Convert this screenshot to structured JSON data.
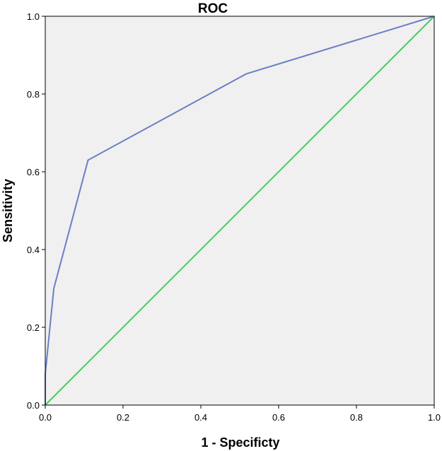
{
  "chart_data": {
    "type": "line",
    "title": "ROC",
    "xlabel": "1 - Specificty",
    "ylabel": "Sensitivity",
    "xlim": [
      0,
      1
    ],
    "ylim": [
      0,
      1
    ],
    "x_ticks": [
      "0.0",
      "0.2",
      "0.4",
      "0.6",
      "0.8",
      "1.0"
    ],
    "y_ticks": [
      "0.0",
      "0.2",
      "0.4",
      "0.6",
      "0.8",
      "1.0"
    ],
    "grid": false,
    "plot_background": "#f0f0f0",
    "series": [
      {
        "color": "#6a7fc4",
        "points": [
          {
            "x": 0.0,
            "y": 0.0
          },
          {
            "x": 0.0,
            "y": 0.08
          },
          {
            "x": 0.022,
            "y": 0.3
          },
          {
            "x": 0.11,
            "y": 0.63
          },
          {
            "x": 0.517,
            "y": 0.852
          },
          {
            "x": 1.0,
            "y": 1.0
          }
        ]
      },
      {
        "color": "#4cc85f",
        "points": [
          {
            "x": 0.0,
            "y": 0.0
          },
          {
            "x": 1.0,
            "y": 1.0
          }
        ]
      }
    ]
  }
}
